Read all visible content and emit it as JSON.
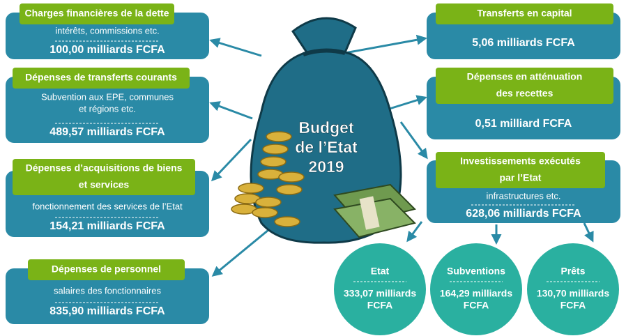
{
  "center": {
    "label": [
      "Budget",
      "de l’Etat",
      "2019"
    ]
  },
  "boxes": [
    {
      "title": [
        "Charges financières de la dette"
      ],
      "subtitle": [
        "intérêts, commissions etc."
      ],
      "amount": "100,00 milliards FCFA"
    },
    {
      "title": [
        "Dépenses de transferts courants"
      ],
      "subtitle": [
        "Subvention aux EPE, communes",
        "et régions etc."
      ],
      "amount": "489,57 milliards FCFA"
    },
    {
      "title": [
        "Dépenses d’acquisitions de biens",
        "et services"
      ],
      "subtitle": [
        "fonctionnement des services de l’Etat"
      ],
      "amount": "154,21 milliards FCFA"
    },
    {
      "title": [
        "Dépenses de personnel"
      ],
      "subtitle": [
        "salaires des fonctionnaires"
      ],
      "amount": "835,90 milliards FCFA"
    },
    {
      "title": [
        "Transferts en capital"
      ],
      "subtitle": [],
      "amount": "5,06 milliards FCFA"
    },
    {
      "title": [
        "Dépenses en atténuation",
        "des recettes"
      ],
      "subtitle": [],
      "amount": "0,51 milliard FCFA"
    },
    {
      "title": [
        "Investissements exécutés",
        "par l’Etat"
      ],
      "subtitle": [
        "infrastructures etc."
      ],
      "amount": "628,06 milliards FCFA"
    }
  ],
  "circles": [
    {
      "title": "Etat",
      "amount": [
        "333,07 milliards",
        "FCFA"
      ]
    },
    {
      "title": "Subventions",
      "amount": [
        "164,29 milliards",
        "FCFA"
      ]
    },
    {
      "title": "Prêts",
      "amount": [
        "130,70 milliards",
        "FCFA"
      ]
    }
  ]
}
